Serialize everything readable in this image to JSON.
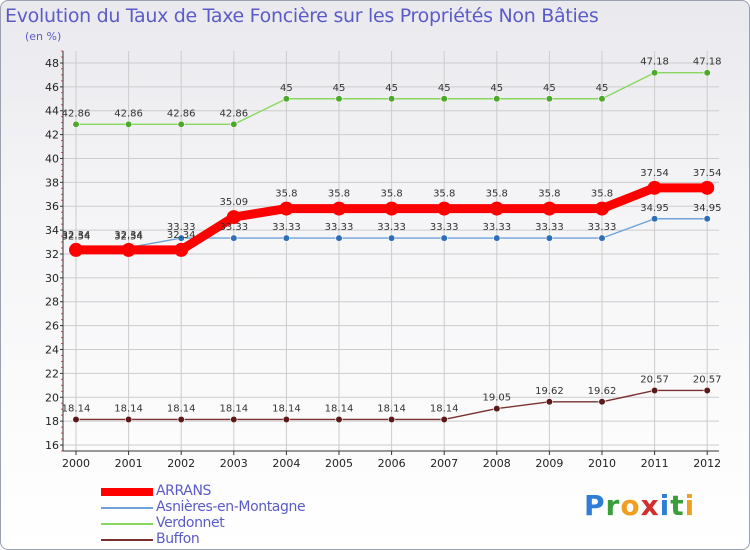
{
  "title": "Evolution du Taux de Taxe Foncière sur les Propriétés Non Bâties",
  "subtitle": "(en %)",
  "colors": {
    "title": "#5b5bc8",
    "axis": "#333333",
    "grid": "#cccccc",
    "tick_red": "#ff4040"
  },
  "logo": {
    "text": "Proxiti",
    "letters": [
      {
        "ch": "P",
        "color": "#2e7dd6"
      },
      {
        "ch": "r",
        "color": "#3a9e3a"
      },
      {
        "ch": "o",
        "color": "#f0a020"
      },
      {
        "ch": "x",
        "color": "#d03030"
      },
      {
        "ch": "i",
        "color": "#2e7dd6"
      },
      {
        "ch": "t",
        "color": "#3a9e3a"
      },
      {
        "ch": "i",
        "color": "#f0a020"
      }
    ]
  },
  "chart_data": {
    "type": "line",
    "title": "Evolution du Taux de Taxe Foncière sur les Propriétés Non Bâties",
    "ylabel": "(en %)",
    "xlabel": "",
    "categories": [
      "2000",
      "2001",
      "2002",
      "2003",
      "2004",
      "2005",
      "2006",
      "2007",
      "2008",
      "2009",
      "2010",
      "2011",
      "2012"
    ],
    "ylim": [
      15.5,
      49
    ],
    "yticks": [
      16,
      18,
      20,
      22,
      24,
      26,
      28,
      30,
      32,
      34,
      36,
      38,
      40,
      42,
      44,
      46,
      48
    ],
    "grid": true,
    "legend_position": "bottom-left",
    "series": [
      {
        "name": "ARRANS",
        "color": "#ff0000",
        "marker": "#ff0000",
        "values": [
          32.34,
          32.34,
          32.34,
          35.09,
          35.8,
          35.8,
          35.8,
          35.8,
          35.8,
          35.8,
          35.8,
          37.54,
          37.54
        ],
        "labels": [
          "32.34",
          "32.34",
          "32.34",
          "35.09",
          "35.8",
          "35.8",
          "35.8",
          "35.8",
          "35.8",
          "35.8",
          "35.8",
          "37.54",
          "37.54"
        ],
        "bold": true
      },
      {
        "name": "Asnières-en-Montagne",
        "color": "#6fa3d8",
        "marker": "#2e6fb8",
        "values": [
          32.54,
          32.54,
          33.33,
          33.33,
          33.33,
          33.33,
          33.33,
          33.33,
          33.33,
          33.33,
          33.33,
          34.95,
          34.95
        ],
        "labels": [
          "32.54",
          "32.54",
          "33.33",
          "33.33",
          "33.33",
          "33.33",
          "33.33",
          "33.33",
          "33.33",
          "33.33",
          "33.33",
          "34.95",
          "34.95"
        ],
        "bold": false
      },
      {
        "name": "Verdonnet",
        "color": "#88d860",
        "marker": "#4ea82e",
        "values": [
          42.86,
          42.86,
          42.86,
          42.86,
          45,
          45,
          45,
          45,
          45,
          45,
          45,
          47.18,
          47.18
        ],
        "labels": [
          "42.86",
          "42.86",
          "42.86",
          "42.86",
          "45",
          "45",
          "45",
          "45",
          "45",
          "45",
          "45",
          "47.18",
          "47.18"
        ],
        "bold": false
      },
      {
        "name": "Buffon",
        "color": "#7a3030",
        "marker": "#5a1a1a",
        "values": [
          18.14,
          18.14,
          18.14,
          18.14,
          18.14,
          18.14,
          18.14,
          18.14,
          19.05,
          19.62,
          19.62,
          20.57,
          20.57
        ],
        "labels": [
          "18.14",
          "18.14",
          "18.14",
          "18.14",
          "18.14",
          "18.14",
          "18.14",
          "18.14",
          "19.05",
          "19.62",
          "19.62",
          "20.57",
          "20.57"
        ],
        "bold": false
      }
    ]
  }
}
